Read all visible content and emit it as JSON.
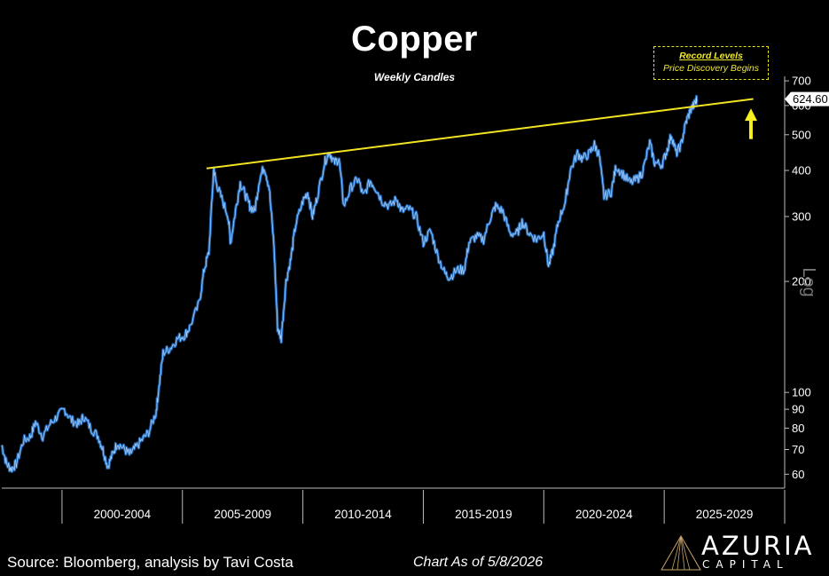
{
  "chart_data": {
    "type": "line",
    "title": "Copper",
    "subtitle": "Weekly Candles",
    "scale": "log",
    "ylim": [
      55,
      720
    ],
    "y_ticks": [
      60,
      70,
      80,
      90,
      100,
      200,
      300,
      400,
      500,
      600,
      700
    ],
    "y_scale_label": "Log",
    "x_range": [
      1997.5,
      2030
    ],
    "x_categories": [
      {
        "label": "2000-2004",
        "start": 2000,
        "end": 2005
      },
      {
        "label": "2005-2009",
        "start": 2005,
        "end": 2010
      },
      {
        "label": "2010-2014",
        "start": 2010,
        "end": 2015
      },
      {
        "label": "2015-2019",
        "start": 2015,
        "end": 2020
      },
      {
        "label": "2020-2024",
        "start": 2020,
        "end": 2025
      },
      {
        "label": "2025-2029",
        "start": 2025,
        "end": 2030
      }
    ],
    "last_value_label": "624.60",
    "series": [
      {
        "color": "#3a86d6",
        "points": [
          [
            1997.5,
            72
          ],
          [
            1997.7,
            64
          ],
          [
            1997.9,
            62
          ],
          [
            1998.1,
            64
          ],
          [
            1998.4,
            74
          ],
          [
            1998.7,
            76
          ],
          [
            1998.9,
            83
          ],
          [
            1999.2,
            76
          ],
          [
            1999.5,
            82
          ],
          [
            1999.8,
            86
          ],
          [
            2000.1,
            90
          ],
          [
            2000.4,
            84
          ],
          [
            2000.7,
            82
          ],
          [
            2000.9,
            86
          ],
          [
            2001.2,
            80
          ],
          [
            2001.5,
            76
          ],
          [
            2001.7,
            70
          ],
          [
            2001.9,
            63
          ],
          [
            2002.1,
            68
          ],
          [
            2002.3,
            73
          ],
          [
            2002.6,
            70
          ],
          [
            2002.8,
            68
          ],
          [
            2003.0,
            70
          ],
          [
            2003.3,
            74
          ],
          [
            2003.6,
            78
          ],
          [
            2003.9,
            88
          ],
          [
            2004.0,
            100
          ],
          [
            2004.2,
            128
          ],
          [
            2004.5,
            132
          ],
          [
            2004.8,
            140
          ],
          [
            2005.1,
            143
          ],
          [
            2005.3,
            150
          ],
          [
            2005.7,
            175
          ],
          [
            2005.9,
            215
          ],
          [
            2006.1,
            240
          ],
          [
            2006.3,
            405
          ],
          [
            2006.4,
            370
          ],
          [
            2006.6,
            340
          ],
          [
            2006.9,
            300
          ],
          [
            2007.0,
            255
          ],
          [
            2007.2,
            310
          ],
          [
            2007.4,
            370
          ],
          [
            2007.6,
            345
          ],
          [
            2007.8,
            320
          ],
          [
            2008.0,
            310
          ],
          [
            2008.2,
            380
          ],
          [
            2008.4,
            410
          ],
          [
            2008.6,
            360
          ],
          [
            2008.8,
            250
          ],
          [
            2008.95,
            150
          ],
          [
            2009.1,
            140
          ],
          [
            2009.3,
            200
          ],
          [
            2009.5,
            230
          ],
          [
            2009.7,
            285
          ],
          [
            2010.0,
            330
          ],
          [
            2010.2,
            350
          ],
          [
            2010.4,
            300
          ],
          [
            2010.6,
            340
          ],
          [
            2010.9,
            420
          ],
          [
            2011.1,
            450
          ],
          [
            2011.3,
            420
          ],
          [
            2011.5,
            430
          ],
          [
            2011.7,
            320
          ],
          [
            2012.0,
            360
          ],
          [
            2012.3,
            380
          ],
          [
            2012.5,
            340
          ],
          [
            2012.8,
            375
          ],
          [
            2013.0,
            360
          ],
          [
            2013.3,
            330
          ],
          [
            2013.6,
            320
          ],
          [
            2013.9,
            335
          ],
          [
            2014.1,
            310
          ],
          [
            2014.4,
            315
          ],
          [
            2014.7,
            300
          ],
          [
            2015.0,
            255
          ],
          [
            2015.3,
            275
          ],
          [
            2015.6,
            235
          ],
          [
            2015.9,
            210
          ],
          [
            2016.1,
            205
          ],
          [
            2016.4,
            215
          ],
          [
            2016.7,
            215
          ],
          [
            2016.9,
            255
          ],
          [
            2017.2,
            265
          ],
          [
            2017.5,
            260
          ],
          [
            2017.8,
            300
          ],
          [
            2018.0,
            320
          ],
          [
            2018.3,
            310
          ],
          [
            2018.6,
            270
          ],
          [
            2018.9,
            270
          ],
          [
            2019.1,
            290
          ],
          [
            2019.4,
            270
          ],
          [
            2019.7,
            260
          ],
          [
            2020.0,
            270
          ],
          [
            2020.2,
            220
          ],
          [
            2020.4,
            245
          ],
          [
            2020.6,
            290
          ],
          [
            2020.9,
            330
          ],
          [
            2021.1,
            400
          ],
          [
            2021.4,
            445
          ],
          [
            2021.6,
            430
          ],
          [
            2021.9,
            445
          ],
          [
            2022.1,
            470
          ],
          [
            2022.3,
            440
          ],
          [
            2022.5,
            340
          ],
          [
            2022.8,
            350
          ],
          [
            2023.0,
            410
          ],
          [
            2023.3,
            390
          ],
          [
            2023.6,
            370
          ],
          [
            2023.9,
            380
          ],
          [
            2024.1,
            395
          ],
          [
            2024.4,
            475
          ],
          [
            2024.6,
            420
          ],
          [
            2024.9,
            415
          ],
          [
            2025.1,
            450
          ],
          [
            2025.3,
            500
          ],
          [
            2025.5,
            445
          ],
          [
            2025.7,
            470
          ],
          [
            2025.9,
            540
          ],
          [
            2026.1,
            585
          ],
          [
            2026.3,
            610
          ],
          [
            2026.35,
            624.6
          ]
        ]
      }
    ],
    "trendline": {
      "color": "#f2e323",
      "from": [
        2006.0,
        405
      ],
      "to": [
        2028.7,
        625
      ]
    },
    "arrow": {
      "color": "#f7ef20",
      "x": 2028.6,
      "value_from": 520,
      "value_to": 570
    }
  },
  "annotation": {
    "heading": "Record Levels",
    "text": "Price Discovery Begins"
  },
  "footer": {
    "source": "Source: Bloomberg, analysis by Tavi Costa",
    "as_of": "Chart As of 5/8/2026"
  },
  "logo": {
    "name": "AZURIA",
    "subname": "CAPITAL"
  },
  "colors": {
    "background": "#000000",
    "series": "#3a86d6",
    "trend": "#f2e323",
    "text": "#ffffff",
    "annotation": "#f0e830"
  }
}
